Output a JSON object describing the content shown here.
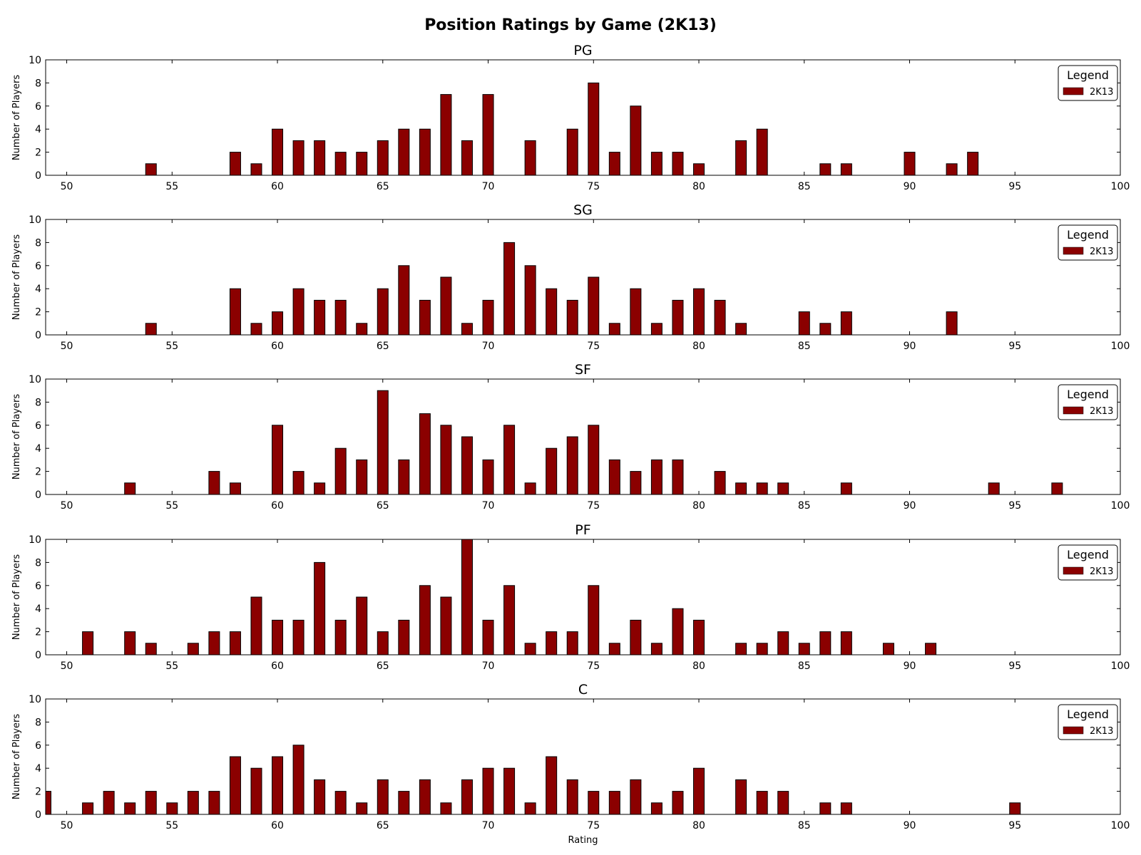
{
  "title": "Position Ratings by Game (2K13)",
  "colors": {
    "bar": "#8b0000",
    "bar_edge": "#000000",
    "axes": "#000000",
    "background": "#ffffff"
  },
  "chart_data": [
    {
      "type": "bar",
      "title": "PG",
      "xlabel": "",
      "ylabel": "Number of Players",
      "xlim": [
        49,
        100
      ],
      "ylim": [
        0,
        10
      ],
      "xticks": [
        50,
        55,
        60,
        65,
        70,
        75,
        80,
        85,
        90,
        95,
        100
      ],
      "yticks": [
        0,
        2,
        4,
        6,
        8,
        10
      ],
      "grid": false,
      "legend": {
        "title": "Legend",
        "placement": "upper right"
      },
      "series": [
        {
          "name": "2K13",
          "points": [
            [
              54,
              1
            ],
            [
              58,
              2
            ],
            [
              59,
              1
            ],
            [
              60,
              4
            ],
            [
              61,
              3
            ],
            [
              62,
              3
            ],
            [
              63,
              2
            ],
            [
              64,
              2
            ],
            [
              65,
              3
            ],
            [
              66,
              4
            ],
            [
              67,
              4
            ],
            [
              68,
              7
            ],
            [
              69,
              3
            ],
            [
              70,
              7
            ],
            [
              72,
              3
            ],
            [
              74,
              4
            ],
            [
              75,
              8
            ],
            [
              76,
              2
            ],
            [
              77,
              6
            ],
            [
              78,
              2
            ],
            [
              79,
              2
            ],
            [
              80,
              1
            ],
            [
              82,
              3
            ],
            [
              83,
              4
            ],
            [
              86,
              1
            ],
            [
              87,
              1
            ],
            [
              90,
              2
            ],
            [
              92,
              1
            ],
            [
              93,
              2
            ]
          ]
        }
      ]
    },
    {
      "type": "bar",
      "title": "SG",
      "xlabel": "",
      "ylabel": "Number of Players",
      "xlim": [
        49,
        100
      ],
      "ylim": [
        0,
        10
      ],
      "xticks": [
        50,
        55,
        60,
        65,
        70,
        75,
        80,
        85,
        90,
        95,
        100
      ],
      "yticks": [
        0,
        2,
        4,
        6,
        8,
        10
      ],
      "grid": false,
      "legend": {
        "title": "Legend",
        "placement": "upper right"
      },
      "series": [
        {
          "name": "2K13",
          "points": [
            [
              54,
              1
            ],
            [
              58,
              4
            ],
            [
              59,
              1
            ],
            [
              60,
              2
            ],
            [
              61,
              4
            ],
            [
              62,
              3
            ],
            [
              63,
              3
            ],
            [
              64,
              1
            ],
            [
              65,
              4
            ],
            [
              66,
              6
            ],
            [
              67,
              3
            ],
            [
              68,
              5
            ],
            [
              69,
              1
            ],
            [
              70,
              3
            ],
            [
              71,
              8
            ],
            [
              72,
              6
            ],
            [
              73,
              4
            ],
            [
              74,
              3
            ],
            [
              75,
              5
            ],
            [
              76,
              1
            ],
            [
              77,
              4
            ],
            [
              78,
              1
            ],
            [
              79,
              3
            ],
            [
              80,
              4
            ],
            [
              81,
              3
            ],
            [
              82,
              1
            ],
            [
              85,
              2
            ],
            [
              86,
              1
            ],
            [
              87,
              2
            ],
            [
              92,
              2
            ]
          ]
        }
      ]
    },
    {
      "type": "bar",
      "title": "SF",
      "xlabel": "",
      "ylabel": "Number of Players",
      "xlim": [
        49,
        100
      ],
      "ylim": [
        0,
        10
      ],
      "xticks": [
        50,
        55,
        60,
        65,
        70,
        75,
        80,
        85,
        90,
        95,
        100
      ],
      "yticks": [
        0,
        2,
        4,
        6,
        8,
        10
      ],
      "grid": false,
      "legend": {
        "title": "Legend",
        "placement": "upper right"
      },
      "series": [
        {
          "name": "2K13",
          "points": [
            [
              53,
              1
            ],
            [
              57,
              2
            ],
            [
              58,
              1
            ],
            [
              60,
              6
            ],
            [
              61,
              2
            ],
            [
              62,
              1
            ],
            [
              63,
              4
            ],
            [
              64,
              3
            ],
            [
              65,
              9
            ],
            [
              66,
              3
            ],
            [
              67,
              7
            ],
            [
              68,
              6
            ],
            [
              69,
              5
            ],
            [
              70,
              3
            ],
            [
              71,
              6
            ],
            [
              72,
              1
            ],
            [
              73,
              4
            ],
            [
              74,
              5
            ],
            [
              75,
              6
            ],
            [
              76,
              3
            ],
            [
              77,
              2
            ],
            [
              78,
              3
            ],
            [
              79,
              3
            ],
            [
              81,
              2
            ],
            [
              82,
              1
            ],
            [
              83,
              1
            ],
            [
              84,
              1
            ],
            [
              87,
              1
            ],
            [
              94,
              1
            ],
            [
              97,
              1
            ]
          ]
        }
      ]
    },
    {
      "type": "bar",
      "title": "PF",
      "xlabel": "",
      "ylabel": "Number of Players",
      "xlim": [
        49,
        100
      ],
      "ylim": [
        0,
        10
      ],
      "xticks": [
        50,
        55,
        60,
        65,
        70,
        75,
        80,
        85,
        90,
        95,
        100
      ],
      "yticks": [
        0,
        2,
        4,
        6,
        8,
        10
      ],
      "grid": false,
      "legend": {
        "title": "Legend",
        "placement": "upper right"
      },
      "series": [
        {
          "name": "2K13",
          "points": [
            [
              51,
              2
            ],
            [
              53,
              2
            ],
            [
              54,
              1
            ],
            [
              56,
              1
            ],
            [
              57,
              2
            ],
            [
              58,
              2
            ],
            [
              59,
              5
            ],
            [
              60,
              3
            ],
            [
              61,
              3
            ],
            [
              62,
              8
            ],
            [
              63,
              3
            ],
            [
              64,
              5
            ],
            [
              65,
              2
            ],
            [
              66,
              3
            ],
            [
              67,
              6
            ],
            [
              68,
              5
            ],
            [
              69,
              10
            ],
            [
              70,
              3
            ],
            [
              71,
              6
            ],
            [
              72,
              1
            ],
            [
              73,
              2
            ],
            [
              74,
              2
            ],
            [
              75,
              6
            ],
            [
              76,
              1
            ],
            [
              77,
              3
            ],
            [
              78,
              1
            ],
            [
              79,
              4
            ],
            [
              80,
              3
            ],
            [
              82,
              1
            ],
            [
              83,
              1
            ],
            [
              84,
              2
            ],
            [
              85,
              1
            ],
            [
              86,
              2
            ],
            [
              87,
              2
            ],
            [
              89,
              1
            ],
            [
              91,
              1
            ]
          ]
        }
      ]
    },
    {
      "type": "bar",
      "title": "C",
      "xlabel": "Rating",
      "ylabel": "Number of Players",
      "xlim": [
        49,
        100
      ],
      "ylim": [
        0,
        10
      ],
      "xticks": [
        50,
        55,
        60,
        65,
        70,
        75,
        80,
        85,
        90,
        95,
        100
      ],
      "yticks": [
        0,
        2,
        4,
        6,
        8,
        10
      ],
      "grid": false,
      "legend": {
        "title": "Legend",
        "placement": "upper right"
      },
      "series": [
        {
          "name": "2K13",
          "points": [
            [
              49,
              2
            ],
            [
              51,
              1
            ],
            [
              52,
              2
            ],
            [
              53,
              1
            ],
            [
              54,
              2
            ],
            [
              55,
              1
            ],
            [
              56,
              2
            ],
            [
              57,
              2
            ],
            [
              58,
              5
            ],
            [
              59,
              4
            ],
            [
              60,
              5
            ],
            [
              61,
              6
            ],
            [
              62,
              3
            ],
            [
              63,
              2
            ],
            [
              64,
              1
            ],
            [
              65,
              3
            ],
            [
              66,
              2
            ],
            [
              67,
              3
            ],
            [
              68,
              1
            ],
            [
              69,
              3
            ],
            [
              70,
              4
            ],
            [
              71,
              4
            ],
            [
              72,
              1
            ],
            [
              73,
              5
            ],
            [
              74,
              3
            ],
            [
              75,
              2
            ],
            [
              76,
              2
            ],
            [
              77,
              3
            ],
            [
              78,
              1
            ],
            [
              79,
              2
            ],
            [
              80,
              4
            ],
            [
              82,
              3
            ],
            [
              83,
              2
            ],
            [
              84,
              2
            ],
            [
              86,
              1
            ],
            [
              87,
              1
            ],
            [
              95,
              1
            ]
          ]
        }
      ]
    }
  ]
}
